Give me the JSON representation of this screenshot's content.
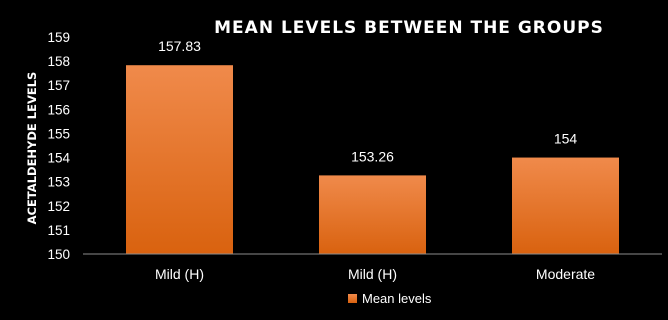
{
  "chart_data": {
    "type": "bar",
    "title": "MEAN LEVELS BETWEEN THE GROUPS",
    "xlabel": "",
    "ylabel": "ACETALDEHYDE LEVELS",
    "categories": [
      "Mild (H)",
      "Mild (H)",
      "Moderate"
    ],
    "series": [
      {
        "name": "Mean levels",
        "values": [
          157.83,
          153.26,
          154
        ],
        "labels": [
          "157.83",
          "153.26",
          "154"
        ]
      }
    ],
    "ylim": [
      150,
      159
    ],
    "yticks": [
      150,
      151,
      152,
      153,
      154,
      155,
      156,
      157,
      158,
      159
    ],
    "grid": false,
    "legend": "bottom",
    "colors": {
      "bar_top": "#f08a4b",
      "bar_bottom": "#d9620f",
      "background": "#000000",
      "axis": "#8c8c8c",
      "text": "#ffffff"
    }
  }
}
